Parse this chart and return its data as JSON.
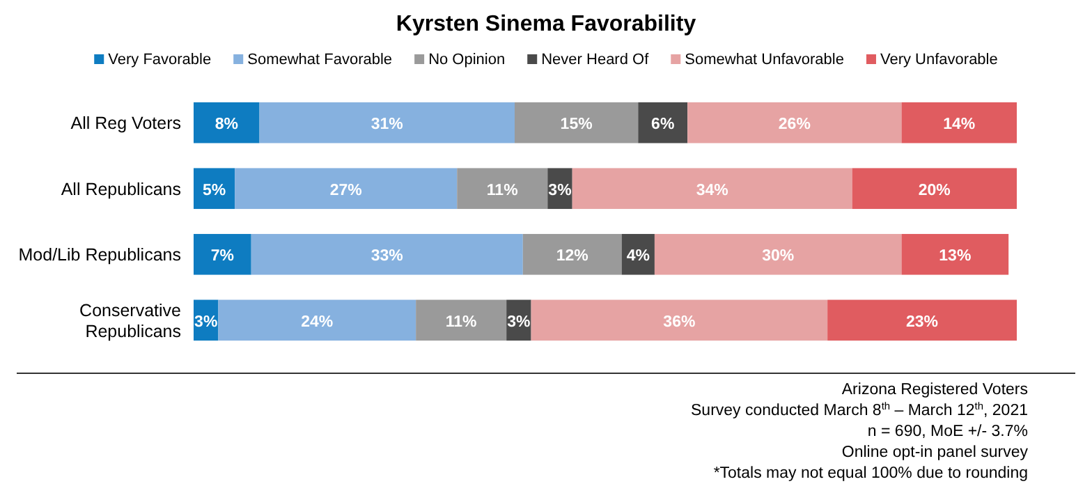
{
  "chart_data": {
    "type": "bar",
    "orientation": "horizontal",
    "stacked": true,
    "title": "Kyrsten Sinema Favorability",
    "categories": [
      "All Reg Voters",
      "All Republicans",
      "Mod/Lib Republicans",
      "Conservative Republicans"
    ],
    "xlim": [
      0,
      100
    ],
    "legend": "top",
    "tick_labels": "y",
    "series": [
      {
        "name": "Very Favorable",
        "color": "#0e7cc1",
        "values": [
          8,
          5,
          7,
          3
        ],
        "value_labels": [
          "8%",
          "5%",
          "7%",
          "3%"
        ]
      },
      {
        "name": "Somewhat Favorable",
        "color": "#86b1df",
        "values": [
          31,
          27,
          33,
          24
        ],
        "value_labels": [
          "31%",
          "27%",
          "33%",
          "24%"
        ]
      },
      {
        "name": "No Opinion",
        "color": "#9a9a9a",
        "values": [
          15,
          11,
          12,
          11
        ],
        "value_labels": [
          "15%",
          "11%",
          "12%",
          "11%"
        ]
      },
      {
        "name": "Never Heard Of",
        "color": "#4a4a4a",
        "values": [
          6,
          3,
          4,
          3
        ],
        "value_labels": [
          "6%",
          "3%",
          "4%",
          "3%"
        ]
      },
      {
        "name": "Somewhat Unfavorable",
        "color": "#e6a3a3",
        "values": [
          26,
          34,
          30,
          36
        ],
        "value_labels": [
          "26%",
          "34%",
          "30%",
          "36%"
        ]
      },
      {
        "name": "Very Unfavorable",
        "color": "#e05c60",
        "values": [
          14,
          20,
          13,
          23
        ],
        "value_labels": [
          "14%",
          "20%",
          "13%",
          "23%"
        ]
      }
    ],
    "annotations": [
      "Arizona Registered Voters",
      "Survey conducted March 8$^{th}$ – March 12$^{th}$, 2021",
      "n = 690, MoE +/- 3.7%",
      "Online opt-in panel survey",
      "*Totals may not equal 100% due to rounding"
    ]
  }
}
